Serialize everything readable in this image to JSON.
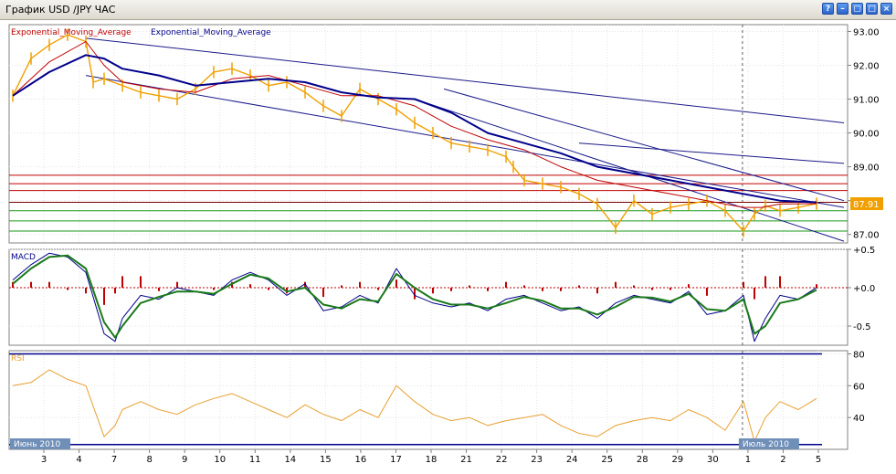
{
  "window": {
    "title": "График USD /JPY  ЧАС",
    "buttons": [
      {
        "name": "help-icon",
        "glyph": "?"
      },
      {
        "name": "minimize-icon",
        "glyph": "–"
      },
      {
        "name": "restore-icon",
        "glyph": "▢"
      },
      {
        "name": "maximize-icon",
        "glyph": "□"
      },
      {
        "name": "close-icon",
        "glyph": "×"
      }
    ]
  },
  "chart_data": [
    {
      "type": "line",
      "panel": "price",
      "legend": [
        "Exponential_Moving_Average",
        "Exponential_Moving_Average"
      ],
      "legend_colors": [
        "#c00000",
        "#00008b"
      ],
      "ylim": [
        86.75,
        93.2
      ],
      "yticks": [
        "93.00",
        "92.00",
        "91.00",
        "90.00",
        "89.00",
        "88.00",
        "87.00"
      ],
      "ytick_values": [
        93,
        92,
        91,
        90,
        89,
        88,
        87
      ],
      "last_price": "87.91",
      "x_range": [
        0,
        22
      ],
      "series": [
        {
          "role": "price",
          "color": "#f0a000",
          "x": [
            0,
            0.5,
            1,
            1.5,
            2,
            2.2,
            2.5,
            3,
            3.5,
            4,
            4.5,
            5,
            5.5,
            6,
            6.5,
            7,
            7.5,
            8,
            8.5,
            9,
            9.5,
            10,
            10.5,
            11,
            11.5,
            12,
            12.5,
            13,
            13.5,
            13.7,
            14,
            14.5,
            15,
            15.5,
            16,
            16.5,
            17,
            17.5,
            18,
            18.5,
            19,
            19.5,
            20,
            20.3,
            20.6,
            21,
            21.5,
            22
          ],
          "y": [
            91.1,
            92.2,
            92.6,
            92.9,
            92.7,
            91.5,
            91.6,
            91.4,
            91.2,
            91.1,
            91.0,
            91.3,
            91.8,
            91.9,
            91.7,
            91.4,
            91.5,
            91.2,
            90.8,
            90.5,
            91.3,
            91.0,
            90.7,
            90.3,
            90.0,
            89.7,
            89.6,
            89.5,
            89.3,
            89.0,
            88.6,
            88.5,
            88.4,
            88.2,
            87.9,
            87.2,
            88.0,
            87.6,
            87.8,
            87.9,
            88.0,
            87.7,
            87.1,
            87.6,
            87.85,
            87.7,
            87.8,
            87.91
          ]
        },
        {
          "role": "ema-fast",
          "name": "Exponential_Moving_Average",
          "color": "#c00000",
          "x": [
            0,
            1,
            2,
            2.5,
            3,
            4,
            5,
            6,
            7,
            8,
            9,
            10,
            11,
            12,
            13,
            14,
            15,
            16,
            17,
            18,
            19,
            20,
            20.5,
            21,
            22
          ],
          "y": [
            91.1,
            92.1,
            92.7,
            92.0,
            91.5,
            91.3,
            91.2,
            91.6,
            91.7,
            91.4,
            91.1,
            91.1,
            90.8,
            90.2,
            89.8,
            89.5,
            89.0,
            88.6,
            88.4,
            88.2,
            88.0,
            87.8,
            87.8,
            87.9,
            87.91
          ]
        },
        {
          "role": "ema-slow",
          "name": "Exponential_Moving_Average",
          "color": "#00008b",
          "x": [
            0,
            1,
            2,
            2.5,
            3,
            4,
            5,
            6,
            7,
            8,
            9,
            10,
            11,
            12,
            13,
            14,
            15,
            16,
            17,
            18,
            19,
            20,
            21,
            22
          ],
          "y": [
            91.1,
            91.8,
            92.3,
            92.2,
            91.9,
            91.7,
            91.4,
            91.5,
            91.6,
            91.5,
            91.2,
            91.05,
            91.0,
            90.6,
            90.0,
            89.7,
            89.4,
            89.0,
            88.8,
            88.6,
            88.4,
            88.2,
            88.0,
            87.95
          ]
        }
      ],
      "trendlines": [
        {
          "from": [
            2,
            92.8
          ],
          "to": [
            22,
            90.3
          ]
        },
        {
          "from": [
            2,
            91.7
          ],
          "to": [
            22,
            87.8
          ]
        },
        {
          "from": [
            11,
            91.0
          ],
          "to": [
            22,
            86.8
          ]
        },
        {
          "from": [
            11.8,
            91.3
          ],
          "to": [
            22,
            88.0
          ]
        },
        {
          "from": [
            15.5,
            89.7
          ],
          "to": [
            22,
            89.1
          ]
        }
      ],
      "levels": [
        {
          "y": 88.75,
          "color": "#c00000"
        },
        {
          "y": 88.5,
          "color": "#c00000"
        },
        {
          "y": 88.3,
          "color": "#c00000"
        },
        {
          "y": 87.95,
          "color": "#7a0000"
        },
        {
          "y": 87.7,
          "color": "#1a9a1a"
        },
        {
          "y": 87.4,
          "color": "#1a9a1a"
        },
        {
          "y": 87.1,
          "color": "#1a9a1a"
        }
      ]
    },
    {
      "type": "line",
      "panel": "macd",
      "legend": [
        "MACD"
      ],
      "ylim": [
        -0.75,
        0.5
      ],
      "yticks": [
        "+0.5",
        "+0.0",
        "-0.5"
      ],
      "ytick_values": [
        0.5,
        0,
        -0.5
      ],
      "series": [
        {
          "role": "macd",
          "color": "#00008b",
          "x": [
            0,
            0.5,
            1,
            1.5,
            2,
            2.5,
            2.8,
            3,
            3.5,
            4,
            4.5,
            5,
            5.5,
            6,
            6.5,
            7,
            7.5,
            8,
            8.5,
            9,
            9.5,
            10,
            10.5,
            11,
            11.5,
            12,
            12.5,
            13,
            13.5,
            14,
            14.5,
            15,
            15.5,
            16,
            16.5,
            17,
            17.5,
            18,
            18.5,
            19,
            19.5,
            20,
            20.3,
            20.6,
            21,
            21.5,
            22
          ],
          "y": [
            0.1,
            0.3,
            0.45,
            0.4,
            0.2,
            -0.6,
            -0.7,
            -0.4,
            -0.1,
            -0.15,
            0.0,
            -0.05,
            -0.1,
            0.1,
            0.2,
            0.1,
            -0.1,
            0.05,
            -0.3,
            -0.25,
            -0.1,
            -0.2,
            0.25,
            -0.1,
            -0.2,
            -0.25,
            -0.2,
            -0.3,
            -0.15,
            -0.1,
            -0.2,
            -0.3,
            -0.25,
            -0.4,
            -0.2,
            -0.1,
            -0.15,
            -0.2,
            -0.05,
            -0.35,
            -0.3,
            -0.1,
            -0.7,
            -0.4,
            -0.1,
            -0.15,
            0.0
          ]
        },
        {
          "role": "signal",
          "color": "#1a7a1a",
          "x": [
            0,
            0.5,
            1,
            1.5,
            2,
            2.5,
            2.8,
            3,
            3.5,
            4,
            4.5,
            5,
            5.5,
            6,
            6.5,
            7,
            7.5,
            8,
            8.5,
            9,
            9.5,
            10,
            10.5,
            11,
            11.5,
            12,
            12.5,
            13,
            13.5,
            14,
            14.5,
            15,
            15.5,
            16,
            16.5,
            17,
            17.5,
            18,
            18.5,
            19,
            19.5,
            20,
            20.3,
            20.6,
            21,
            21.5,
            22
          ],
          "y": [
            0.05,
            0.25,
            0.4,
            0.42,
            0.25,
            -0.45,
            -0.65,
            -0.5,
            -0.2,
            -0.12,
            -0.05,
            -0.05,
            -0.08,
            0.05,
            0.17,
            0.12,
            -0.05,
            0.0,
            -0.22,
            -0.27,
            -0.15,
            -0.18,
            0.18,
            0.0,
            -0.15,
            -0.22,
            -0.22,
            -0.27,
            -0.2,
            -0.12,
            -0.17,
            -0.27,
            -0.27,
            -0.35,
            -0.25,
            -0.12,
            -0.13,
            -0.18,
            -0.08,
            -0.28,
            -0.3,
            -0.15,
            -0.6,
            -0.5,
            -0.2,
            -0.15,
            -0.03
          ]
        }
      ],
      "histogram_color": "#c00000"
    },
    {
      "type": "line",
      "panel": "rsi",
      "legend": [
        "RSI"
      ],
      "ylim": [
        20,
        82
      ],
      "yticks": [
        "80",
        "60",
        "40"
      ],
      "ytick_values": [
        80,
        60,
        40
      ],
      "levels": [
        {
          "y": 80,
          "color": "#00008b"
        },
        {
          "y": 23,
          "color": "#00008b"
        }
      ],
      "series": [
        {
          "role": "rsi",
          "color": "#e8a030",
          "x": [
            0,
            0.5,
            1,
            1.5,
            2,
            2.5,
            2.8,
            3,
            3.5,
            4,
            4.5,
            5,
            5.5,
            6,
            6.5,
            7,
            7.5,
            8,
            8.5,
            9,
            9.5,
            10,
            10.5,
            11,
            11.5,
            12,
            12.5,
            13,
            13.5,
            14,
            14.5,
            15,
            15.5,
            16,
            16.5,
            17,
            17.5,
            18,
            18.5,
            19,
            19.5,
            20,
            20.3,
            20.6,
            21,
            21.5,
            22
          ],
          "y": [
            60,
            62,
            70,
            64,
            60,
            28,
            35,
            45,
            50,
            45,
            42,
            48,
            52,
            55,
            50,
            45,
            40,
            48,
            42,
            38,
            45,
            40,
            60,
            50,
            42,
            38,
            40,
            35,
            38,
            40,
            42,
            35,
            30,
            28,
            35,
            38,
            40,
            38,
            45,
            40,
            32,
            50,
            25,
            40,
            50,
            45,
            52
          ]
        }
      ]
    }
  ],
  "x_axis": {
    "labels": [
      "3",
      "4",
      "7",
      "8",
      "9",
      "10",
      "11",
      "14",
      "15",
      "16",
      "17",
      "18",
      "21",
      "22",
      "23",
      "24",
      "25",
      "28",
      "29",
      "30",
      "1",
      "2",
      "5"
    ],
    "month_labels": [
      {
        "text": "Июнь 2010",
        "index": 0
      },
      {
        "text": "Июль 2010",
        "index": 20
      }
    ],
    "separator_index": 20
  }
}
